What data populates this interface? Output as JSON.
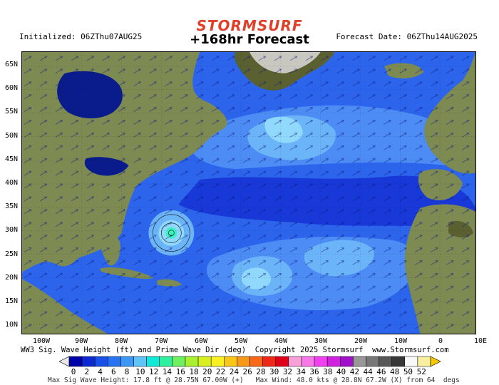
{
  "header": {
    "brand": "STORMSURF",
    "title": "+168hr Forecast",
    "initialized": "Initialized: 06ZThu07AUG25",
    "forecast_date": "Forecast Date: 06ZThu14AUG2025"
  },
  "axes": {
    "lat_labels": [
      "65N",
      "60N",
      "55N",
      "50N",
      "45N",
      "40N",
      "35N",
      "30N",
      "25N",
      "20N",
      "15N",
      "10N"
    ],
    "lon_labels": [
      "100W",
      "90W",
      "80W",
      "70W",
      "60W",
      "50W",
      "40W",
      "30W",
      "20W",
      "10W",
      "0",
      "10E"
    ]
  },
  "caption": {
    "left": "WW3 Sig. Wave Height (ft) and Prime Wave Dir (deg)",
    "middle": "Copyright 2025 Stormsurf",
    "right": "www.Stormsurf.com"
  },
  "scale": {
    "labels": [
      "0",
      "2",
      "4",
      "6",
      "8",
      "10",
      "12",
      "14",
      "16",
      "18",
      "20",
      "22",
      "24",
      "26",
      "28",
      "30",
      "32",
      "34",
      "36",
      "38",
      "40",
      "42",
      "44",
      "46",
      "48",
      "50",
      "52"
    ],
    "colors": [
      "#0000a8",
      "#0c28d0",
      "#1850e8",
      "#2874f0",
      "#3c98f4",
      "#60c4f8",
      "#10e8d8",
      "#30f0a0",
      "#70f060",
      "#a8f030",
      "#d8f020",
      "#f8f020",
      "#f8c818",
      "#f89818",
      "#f86818",
      "#f02818",
      "#e00018",
      "#f8a0d8",
      "#f878e8",
      "#f040f0",
      "#d020e0",
      "#a010c8",
      "#989898",
      "#787878",
      "#585858",
      "#383838",
      "#f8f8f8",
      "#f8f0a0"
    ],
    "left_arrow_color": "#e8e8e8",
    "right_arrow_color": "#f8c800"
  },
  "footer": {
    "max_sig": "Max Sig Wave Height: 17.8 ft @ 28.75N 67.00W (+)",
    "max_wind": "Max Wind: 48.0 kts @ 28.8N 67.2W (X) from 64  degs"
  },
  "map_colors": {
    "land": "#7d8a52",
    "land_high": "#5a6030",
    "ice": "#c8c8c0",
    "sea_deep": "#1838d8",
    "sea_mid": "#2c64ec",
    "sea_light": "#4c8cf4",
    "sea_pale": "#6cb4f8",
    "sea_cyan": "#90d8fc",
    "lake": "#0a1c8c",
    "storm": "#40f0c0"
  }
}
